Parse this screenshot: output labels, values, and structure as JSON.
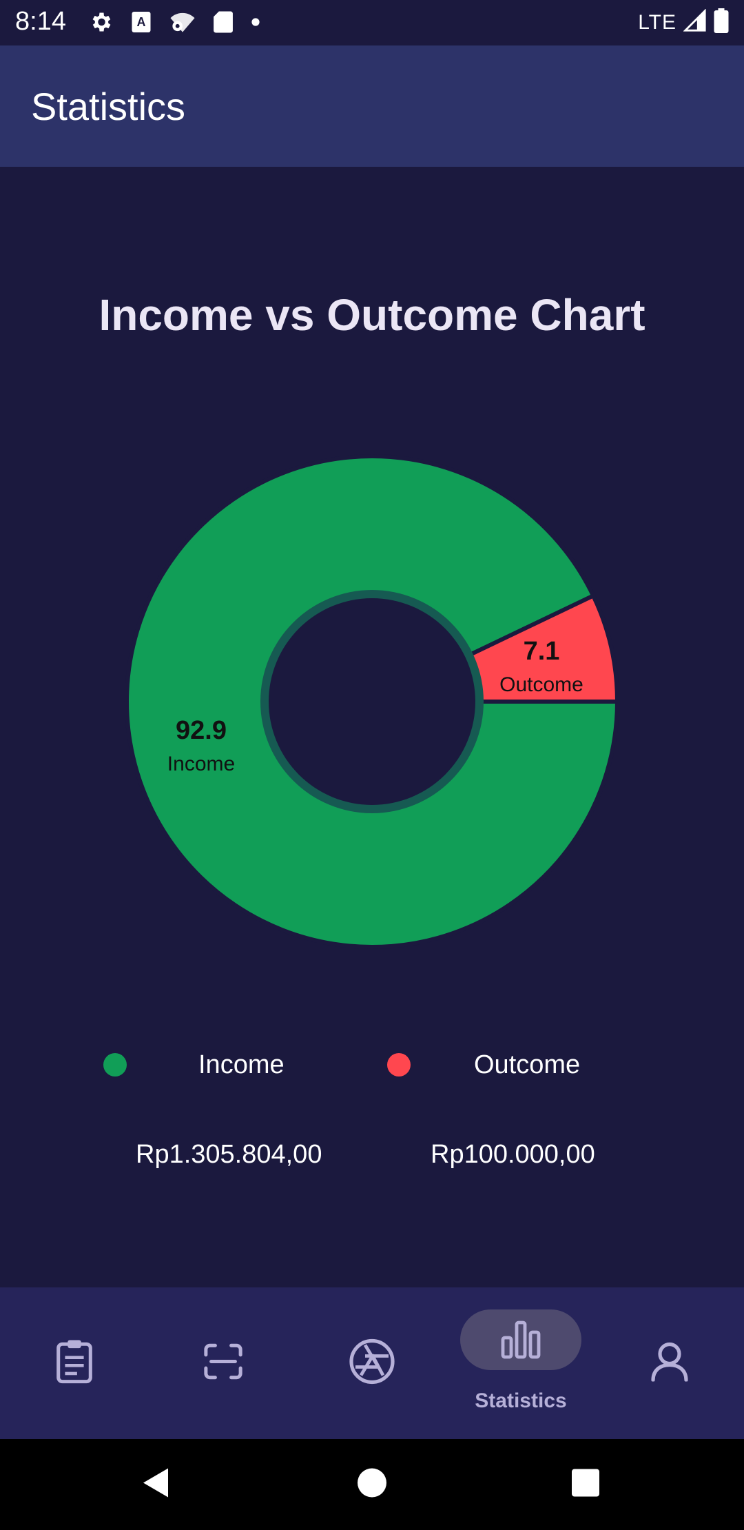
{
  "status_bar": {
    "time": "8:14",
    "network": "LTE",
    "icons": [
      "gear-icon",
      "text-a-icon",
      "wifi-gear-icon",
      "sd-card-icon",
      "dot-icon",
      "signal-icon",
      "battery-icon"
    ]
  },
  "app_bar": {
    "title": "Statistics"
  },
  "chart_data": {
    "type": "pie",
    "title": "Income vs Outcome Chart",
    "categories": [
      "Income",
      "Outcome"
    ],
    "values": [
      92.9,
      7.1
    ],
    "colors": [
      "#119e57",
      "#ff474f"
    ],
    "legend_position": "bottom"
  },
  "legend": {
    "items": [
      {
        "label": "Income",
        "color": "#119e57"
      },
      {
        "label": "Outcome",
        "color": "#ff474f"
      }
    ]
  },
  "totals": {
    "income": "Rp1.305.804,00",
    "outcome": "Rp100.000,00"
  },
  "bottom_nav": {
    "items": [
      {
        "icon": "notes-icon",
        "label": ""
      },
      {
        "icon": "scan-icon",
        "label": ""
      },
      {
        "icon": "camera-shutter-icon",
        "label": ""
      },
      {
        "icon": "bar-chart-icon",
        "label": "Statistics",
        "active": true
      },
      {
        "icon": "person-icon",
        "label": ""
      }
    ]
  },
  "colors": {
    "background": "#1b193e",
    "app_bar": "#2d3369",
    "bottom_nav": "#26245a",
    "nav_active_pill": "#4e4a6e"
  }
}
